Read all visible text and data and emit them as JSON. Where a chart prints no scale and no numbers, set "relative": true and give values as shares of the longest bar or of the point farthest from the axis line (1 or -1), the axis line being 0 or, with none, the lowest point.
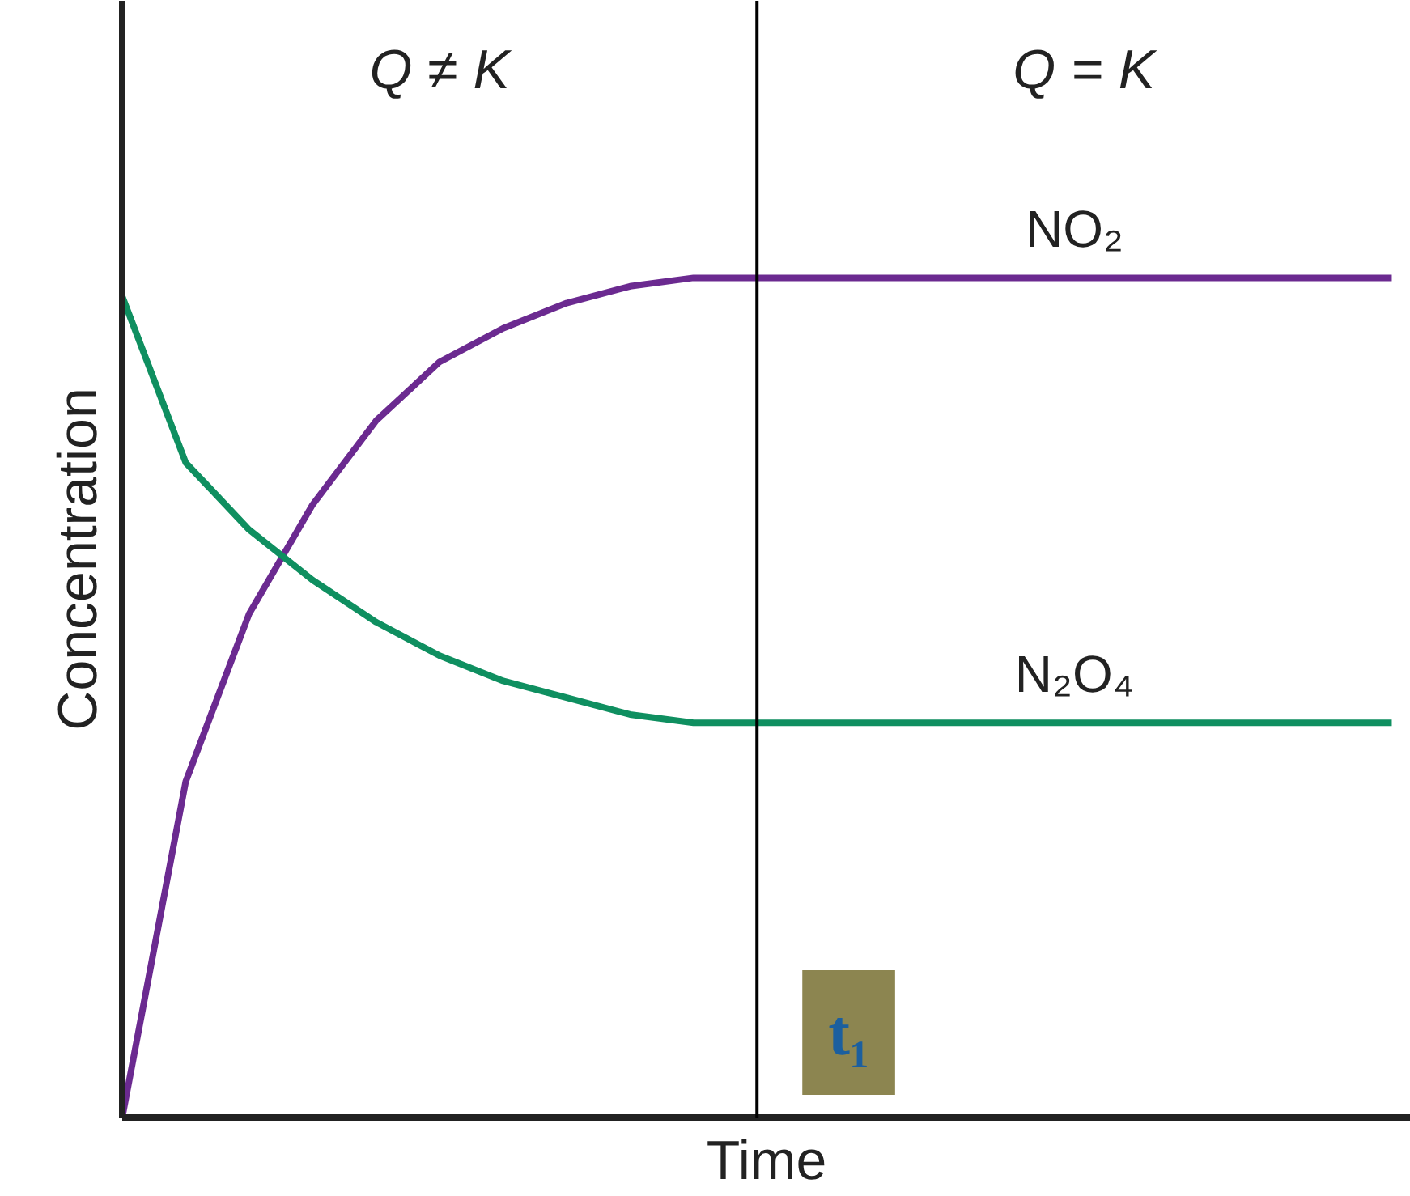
{
  "chart_data": {
    "type": "line",
    "relative": true,
    "xlabel": "Time",
    "ylabel": "Concentration",
    "categories": [
      null,
      null,
      null,
      null,
      null,
      null,
      null,
      null,
      null,
      null,
      null,
      null,
      null,
      null,
      null,
      null,
      null,
      null,
      null,
      null,
      null
    ],
    "series": [
      {
        "name": "NO₂",
        "color": "#6b2a90",
        "values": [
          0,
          0.4,
          0.6,
          0.73,
          0.83,
          0.9,
          0.94,
          0.97,
          0.99,
          1.0,
          1.0,
          1.0,
          1.0,
          1.0,
          1.0,
          1.0,
          1.0,
          1.0,
          1.0,
          1.0,
          1.0
        ]
      },
      {
        "name": "N₂O₄",
        "color": "#0f8f60",
        "values": [
          0.978,
          0.78,
          0.7,
          0.64,
          0.59,
          0.55,
          0.52,
          0.5,
          0.48,
          0.47,
          0.47,
          0.47,
          0.47,
          0.47,
          0.47,
          0.47,
          0.47,
          0.47,
          0.47,
          0.47,
          0.47
        ]
      }
    ],
    "annotations": [
      "Q ≠ K",
      "Q = K",
      "t₁"
    ]
  }
}
